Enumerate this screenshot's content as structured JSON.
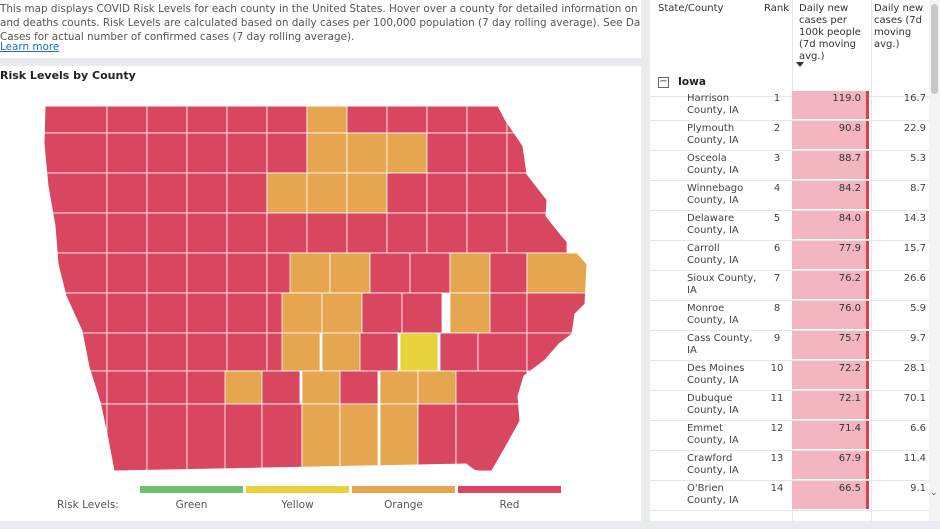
{
  "description": {
    "lines": [
      "This map displays COVID Risk Levels for each county in the United States. Hover over a county for detailed information on cases",
      "and deaths counts. Risk Levels are calculated based on daily cases per 100,000 population (7 day rolling average). See Daily New",
      "Cases for actual number of confirmed cases (7 day rolling average)."
    ],
    "learn_more": "Learn more"
  },
  "map": {
    "title": "Risk Levels by County",
    "colors": {
      "green": "#71bf6b",
      "yellow": "#e8d33c",
      "orange": "#e5a64f",
      "red": "#d9465f"
    },
    "legend": {
      "label": "Risk Levels:",
      "items": [
        {
          "name": "Green",
          "color": "#71bf6b"
        },
        {
          "name": "Yellow",
          "color": "#e8d33c"
        },
        {
          "name": "Orange",
          "color": "#e5a64f"
        },
        {
          "name": "Red",
          "color": "#d9465f"
        }
      ]
    }
  },
  "table": {
    "headers": {
      "county": "State/County",
      "rank": "Rank",
      "rate": [
        "Daily new",
        "cases per",
        "100k people",
        "(7d moving",
        "avg.)"
      ],
      "avg": [
        "Daily new",
        "cases (7d",
        "moving",
        "avg.)"
      ]
    },
    "state_label": "Iowa",
    "rows": [
      {
        "county": [
          "Harrison",
          "County, IA"
        ],
        "rank": "1",
        "rate": "119.0",
        "avg": "16.7"
      },
      {
        "county": [
          "Plymouth",
          "County, IA"
        ],
        "rank": "2",
        "rate": "90.8",
        "avg": "22.9"
      },
      {
        "county": [
          "Osceola",
          "County, IA"
        ],
        "rank": "3",
        "rate": "88.7",
        "avg": "5.3"
      },
      {
        "county": [
          "Winnebago",
          "County, IA"
        ],
        "rank": "4",
        "rate": "84.2",
        "avg": "8.7"
      },
      {
        "county": [
          "Delaware",
          "County, IA"
        ],
        "rank": "5",
        "rate": "84.0",
        "avg": "14.3"
      },
      {
        "county": [
          "Carroll",
          "County, IA"
        ],
        "rank": "6",
        "rate": "77.9",
        "avg": "15.7"
      },
      {
        "county": [
          "Sioux County,",
          "IA"
        ],
        "rank": "7",
        "rate": "76.2",
        "avg": "26.6"
      },
      {
        "county": [
          "Monroe",
          "County, IA"
        ],
        "rank": "8",
        "rate": "76.0",
        "avg": "5.9"
      },
      {
        "county": [
          "Cass County,",
          "IA"
        ],
        "rank": "9",
        "rate": "75.7",
        "avg": "9.7"
      },
      {
        "county": [
          "Des Moines",
          "County, IA"
        ],
        "rank": "10",
        "rate": "72.2",
        "avg": "28.1"
      },
      {
        "county": [
          "Dubuque",
          "County, IA"
        ],
        "rank": "11",
        "rate": "72.1",
        "avg": "70.1"
      },
      {
        "county": [
          "Emmet",
          "County, IA"
        ],
        "rank": "12",
        "rate": "71.4",
        "avg": "6.6"
      },
      {
        "county": [
          "Crawford",
          "County, IA"
        ],
        "rank": "13",
        "rate": "67.9",
        "avg": "11.4"
      },
      {
        "county": [
          "O'Brien",
          "County, IA"
        ],
        "rank": "14",
        "rate": "66.5",
        "avg": "9.1"
      }
    ]
  }
}
